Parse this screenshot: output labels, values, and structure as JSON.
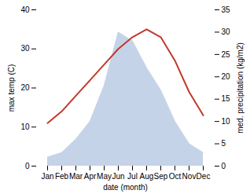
{
  "chart_data": {
    "type": "line",
    "xlabel": "date (month)",
    "ylabel": "max temp (C)",
    "y2label": "med. precipitation (kg/m2)",
    "categories": [
      "Jan",
      "Feb",
      "Mar",
      "Apr",
      "May",
      "Jun",
      "Jul",
      "Aug",
      "Sep",
      "Oct",
      "Nov",
      "Dec"
    ],
    "series": [
      {
        "type": "area",
        "axis": "y2",
        "color": "#c5d3e8",
        "values": [
          2,
          3,
          6,
          10,
          18,
          30,
          28,
          22,
          17,
          10,
          5,
          3
        ]
      },
      {
        "type": "line",
        "color": "#c0392b",
        "values": [
          11,
          14,
          18,
          22,
          26,
          30,
          33,
          35,
          33,
          27,
          19,
          13
        ]
      }
    ],
    "ylim": [
      0,
      40
    ],
    "yticks": [
      0,
      10,
      20,
      30,
      40
    ],
    "y2lim": [
      0,
      35
    ],
    "y2ticks": [
      0,
      5,
      10,
      15,
      20,
      25,
      30,
      35
    ],
    "grid": false
  }
}
